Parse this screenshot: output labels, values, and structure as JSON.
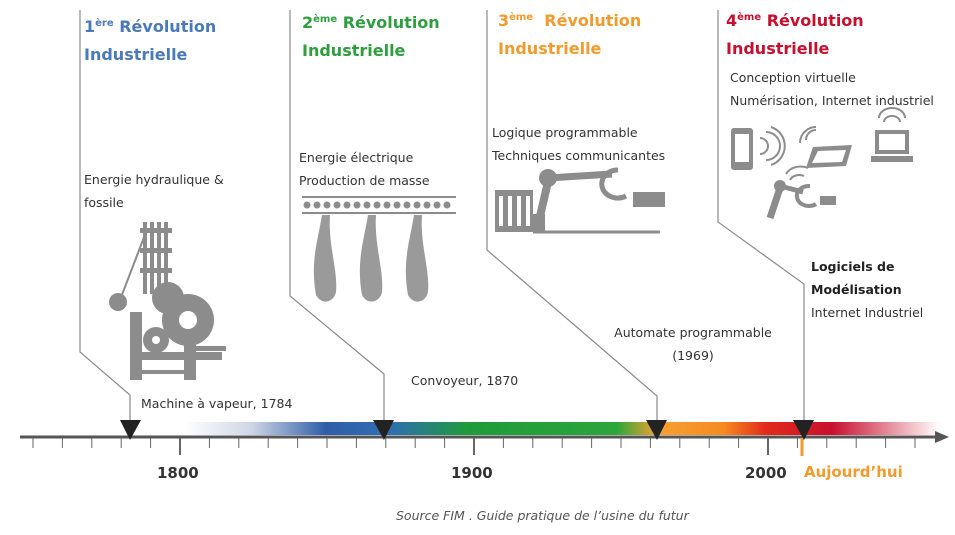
{
  "revolutions": [
    {
      "ordinal": "1",
      "sup": "ère",
      "title1": "Révolution",
      "title2": "Industrielle",
      "color": "#4a7ab8",
      "lines": [
        "Energie hydraulique &",
        "fossile"
      ],
      "event": "Machine à vapeur, 1784"
    },
    {
      "ordinal": "2",
      "sup": "ème",
      "title1": "Révolution",
      "title2": "Industrielle",
      "color": "#2e9e3e",
      "lines": [
        "Energie électrique",
        "Production de masse"
      ],
      "event": "Convoyeur, 1870"
    },
    {
      "ordinal": "3",
      "sup": "ème",
      "title1": "Révolution",
      "title2": "Industrielle",
      "color": "#f39a2d",
      "lines": [
        "Logique programmable",
        "Techniques communicantes"
      ],
      "event": "Automate programmable",
      "event2": "(1969)"
    },
    {
      "ordinal": "4",
      "sup": "ème",
      "title1": "Révolution",
      "title2": "Industrielle",
      "color": "#c8102e",
      "lines": [
        "Conception virtuelle",
        "Numérisation, Internet industriel"
      ],
      "event_bold1": "Logiciels de",
      "event_bold2": "Modélisation",
      "event": "Internet Industriel"
    }
  ],
  "timeline": {
    "years": [
      "1800",
      "1900",
      "2000"
    ],
    "today": "Aujourd’hui"
  },
  "source": "Source FIM . Guide pratique de l’usine du futur"
}
